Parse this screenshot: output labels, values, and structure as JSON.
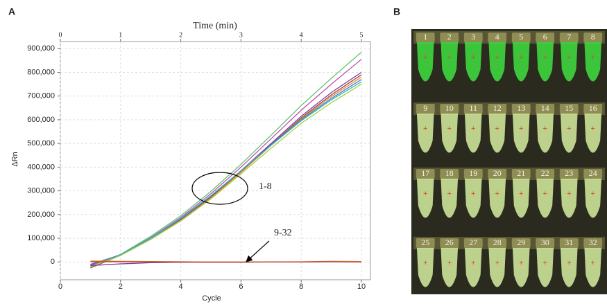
{
  "panel_labels": [
    "A",
    "B"
  ],
  "chart_data": {
    "type": "line",
    "x_label": "Cycle",
    "y_label": "ΔRn",
    "x2_label": "Time (min)",
    "x": [
      1,
      2,
      3,
      4,
      5,
      6,
      7,
      8,
      9,
      10
    ],
    "xlim": [
      0,
      10.3
    ],
    "xticks": [
      0,
      2,
      4,
      6,
      8,
      10
    ],
    "x2lim": [
      0,
      5.15
    ],
    "x2ticks": [
      0,
      1,
      2,
      3,
      4,
      5
    ],
    "ylim": [
      -75000,
      930000
    ],
    "yticks": [
      {
        "value": 0,
        "label": "0"
      },
      {
        "value": 100000,
        "label": "100,000"
      },
      {
        "value": 200000,
        "label": "200,000"
      },
      {
        "value": 300000,
        "label": "300,000"
      },
      {
        "value": 400000,
        "label": "400,000"
      },
      {
        "value": 500000,
        "label": "500,000"
      },
      {
        "value": 600000,
        "label": "600,000"
      },
      {
        "value": 700000,
        "label": "700,000"
      },
      {
        "value": 800000,
        "label": "800,000"
      },
      {
        "value": 900000,
        "label": "900,000"
      }
    ],
    "grid": true,
    "series": [
      {
        "color": "#5cc46a",
        "values": [
          -20000,
          32000,
          108000,
          195000,
          298000,
          412000,
          535000,
          660000,
          775000,
          885000
        ]
      },
      {
        "color": "#c34fb0",
        "values": [
          -15000,
          30000,
          103000,
          188000,
          288000,
          400000,
          520000,
          640000,
          750000,
          855000
        ]
      },
      {
        "color": "#7a3f9a",
        "values": [
          -10000,
          30000,
          98000,
          178000,
          275000,
          385000,
          500000,
          615000,
          715000,
          800000
        ]
      },
      {
        "color": "#b03a3a",
        "values": [
          -25000,
          28000,
          96000,
          176000,
          272000,
          380000,
          495000,
          608000,
          705000,
          790000
        ]
      },
      {
        "color": "#e08a2c",
        "values": [
          -18000,
          29000,
          97000,
          175000,
          270000,
          378000,
          492000,
          604000,
          698000,
          780000
        ]
      },
      {
        "color": "#3a7fd0",
        "values": [
          -12000,
          31000,
          100000,
          182000,
          278000,
          384000,
          494000,
          600000,
          690000,
          770000
        ]
      },
      {
        "color": "#35b5c0",
        "values": [
          -22000,
          30000,
          101000,
          184000,
          280000,
          385000,
          492000,
          596000,
          684000,
          760000
        ]
      },
      {
        "color": "#a8cf3a",
        "values": [
          -20000,
          27000,
          95000,
          173000,
          266000,
          372000,
          480000,
          585000,
          672000,
          750000
        ]
      },
      {
        "color": "#7a3f9a",
        "values": [
          -15000,
          -8000,
          -3000,
          -1000,
          0,
          0,
          0,
          0,
          1000,
          1000
        ]
      },
      {
        "color": "#e08a2c",
        "values": [
          4000,
          3000,
          2000,
          1000,
          0,
          0,
          0,
          1000,
          3000,
          2000
        ]
      },
      {
        "color": "#b03a3a",
        "values": [
          1000,
          1000,
          0,
          0,
          -1000,
          -1000,
          0,
          0,
          1000,
          0
        ]
      }
    ]
  },
  "photo": {
    "rows": [
      {
        "color": "#3fe040",
        "labels": [
          "1",
          "2",
          "3",
          "4",
          "5",
          "6",
          "7",
          "8"
        ]
      },
      {
        "color": "#d6eea0",
        "labels": [
          "9",
          "10",
          "11",
          "12",
          "13",
          "14",
          "15",
          "16"
        ]
      },
      {
        "color": "#d6eea0",
        "labels": [
          "17",
          "18",
          "19",
          "20",
          "21",
          "22",
          "23",
          "24"
        ]
      },
      {
        "color": "#d6eea0",
        "labels": [
          "25",
          "26",
          "27",
          "28",
          "29",
          "30",
          "31",
          "32"
        ]
      }
    ]
  },
  "annotations": [
    "1-8",
    "9-32"
  ]
}
